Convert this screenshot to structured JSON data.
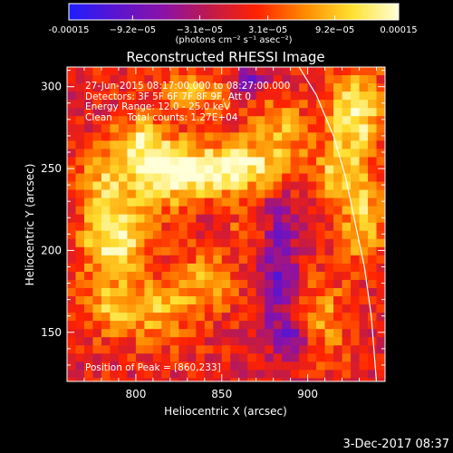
{
  "chart_data": {
    "type": "heatmap",
    "title": "Reconstructed RHESSI Image",
    "xlabel": "Heliocentric X (arcsec)",
    "ylabel": "Heliocentric Y (arcsec)",
    "xlim": [
      760,
      945
    ],
    "ylim": [
      120,
      312
    ],
    "x_ticks": [
      800,
      850,
      900
    ],
    "y_ticks": [
      150,
      200,
      250,
      300
    ],
    "colorbar": {
      "label": "(photons cm⁻² s⁻¹ asec⁻²)",
      "range": [
        -0.00015,
        0.00015
      ],
      "ticks": [
        "-0.00015",
        "−9.2e−05",
        "−3.1e−05",
        "3.1e−05",
        "9.2e−05",
        "0.00015"
      ],
      "tick_values": [
        -0.00015,
        -9.2e-05,
        -3.1e-05,
        3.1e-05,
        9.2e-05,
        0.00015
      ],
      "colors": [
        "#1e1eff",
        "#5a14d0",
        "#8a12a8",
        "#c01a4a",
        "#ff2200",
        "#ff8a00",
        "#ffe030",
        "#ffffd8"
      ]
    },
    "annotations": [
      "27-Jun-2015 08:17:00.000 to 08:27:00.000",
      "Detectors: 3F 5F 6F 7F 8F 9F, Att 0",
      "Energy Range: 12.0 - 25.0 keV",
      "Clean     Total counts: 1.27E+04",
      "Position of Peak = [860,233]"
    ],
    "peak": {
      "x": 860,
      "y": 233
    },
    "emission_regions": [
      {
        "x": 812,
        "y": 248,
        "sx": 14,
        "sy": 14,
        "amp": 0.000115
      },
      {
        "x": 850,
        "y": 252,
        "sx": 22,
        "sy": 11,
        "amp": 0.00015
      },
      {
        "x": 785,
        "y": 210,
        "sx": 14,
        "sy": 14,
        "amp": 0.000135
      },
      {
        "x": 800,
        "y": 270,
        "sx": 12,
        "sy": 11,
        "amp": 0.0001
      },
      {
        "x": 780,
        "y": 245,
        "sx": 11,
        "sy": 12,
        "amp": 9e-05
      },
      {
        "x": 830,
        "y": 300,
        "sx": 16,
        "sy": 9,
        "amp": 8e-05
      },
      {
        "x": 880,
        "y": 275,
        "sx": 12,
        "sy": 14,
        "amp": 8e-05
      },
      {
        "x": 925,
        "y": 285,
        "sx": 12,
        "sy": 20,
        "amp": 0.00012
      },
      {
        "x": 930,
        "y": 220,
        "sx": 10,
        "sy": 18,
        "amp": 0.0001
      },
      {
        "x": 915,
        "y": 250,
        "sx": 10,
        "sy": 12,
        "amp": 8e-05
      },
      {
        "x": 840,
        "y": 185,
        "sx": 13,
        "sy": 14,
        "amp": 7e-05
      },
      {
        "x": 810,
        "y": 165,
        "sx": 16,
        "sy": 14,
        "amp": 8e-05
      },
      {
        "x": 780,
        "y": 170,
        "sx": 12,
        "sy": 14,
        "amp": 7e-05
      },
      {
        "x": 905,
        "y": 160,
        "sx": 12,
        "sy": 18,
        "amp": 7e-05
      },
      {
        "x": 865,
        "y": 215,
        "sx": 9,
        "sy": 8,
        "amp": 6e-05
      },
      {
        "x": 880,
        "y": 195,
        "sx": 8,
        "sy": 30,
        "amp": -9e-05
      },
      {
        "x": 862,
        "y": 305,
        "sx": 8,
        "sy": 6,
        "amp": -9e-05
      },
      {
        "x": 890,
        "y": 150,
        "sx": 8,
        "sy": 8,
        "amp": -8e-05
      }
    ],
    "limb_curve": [
      {
        "x": 895,
        "y": 312
      },
      {
        "x": 905,
        "y": 295
      },
      {
        "x": 915,
        "y": 270
      },
      {
        "x": 922,
        "y": 245
      },
      {
        "x": 927,
        "y": 220
      },
      {
        "x": 933,
        "y": 190
      },
      {
        "x": 937,
        "y": 160
      },
      {
        "x": 940,
        "y": 120
      }
    ]
  },
  "footer": {
    "date_stamp": "3-Dec-2017 08:37"
  }
}
